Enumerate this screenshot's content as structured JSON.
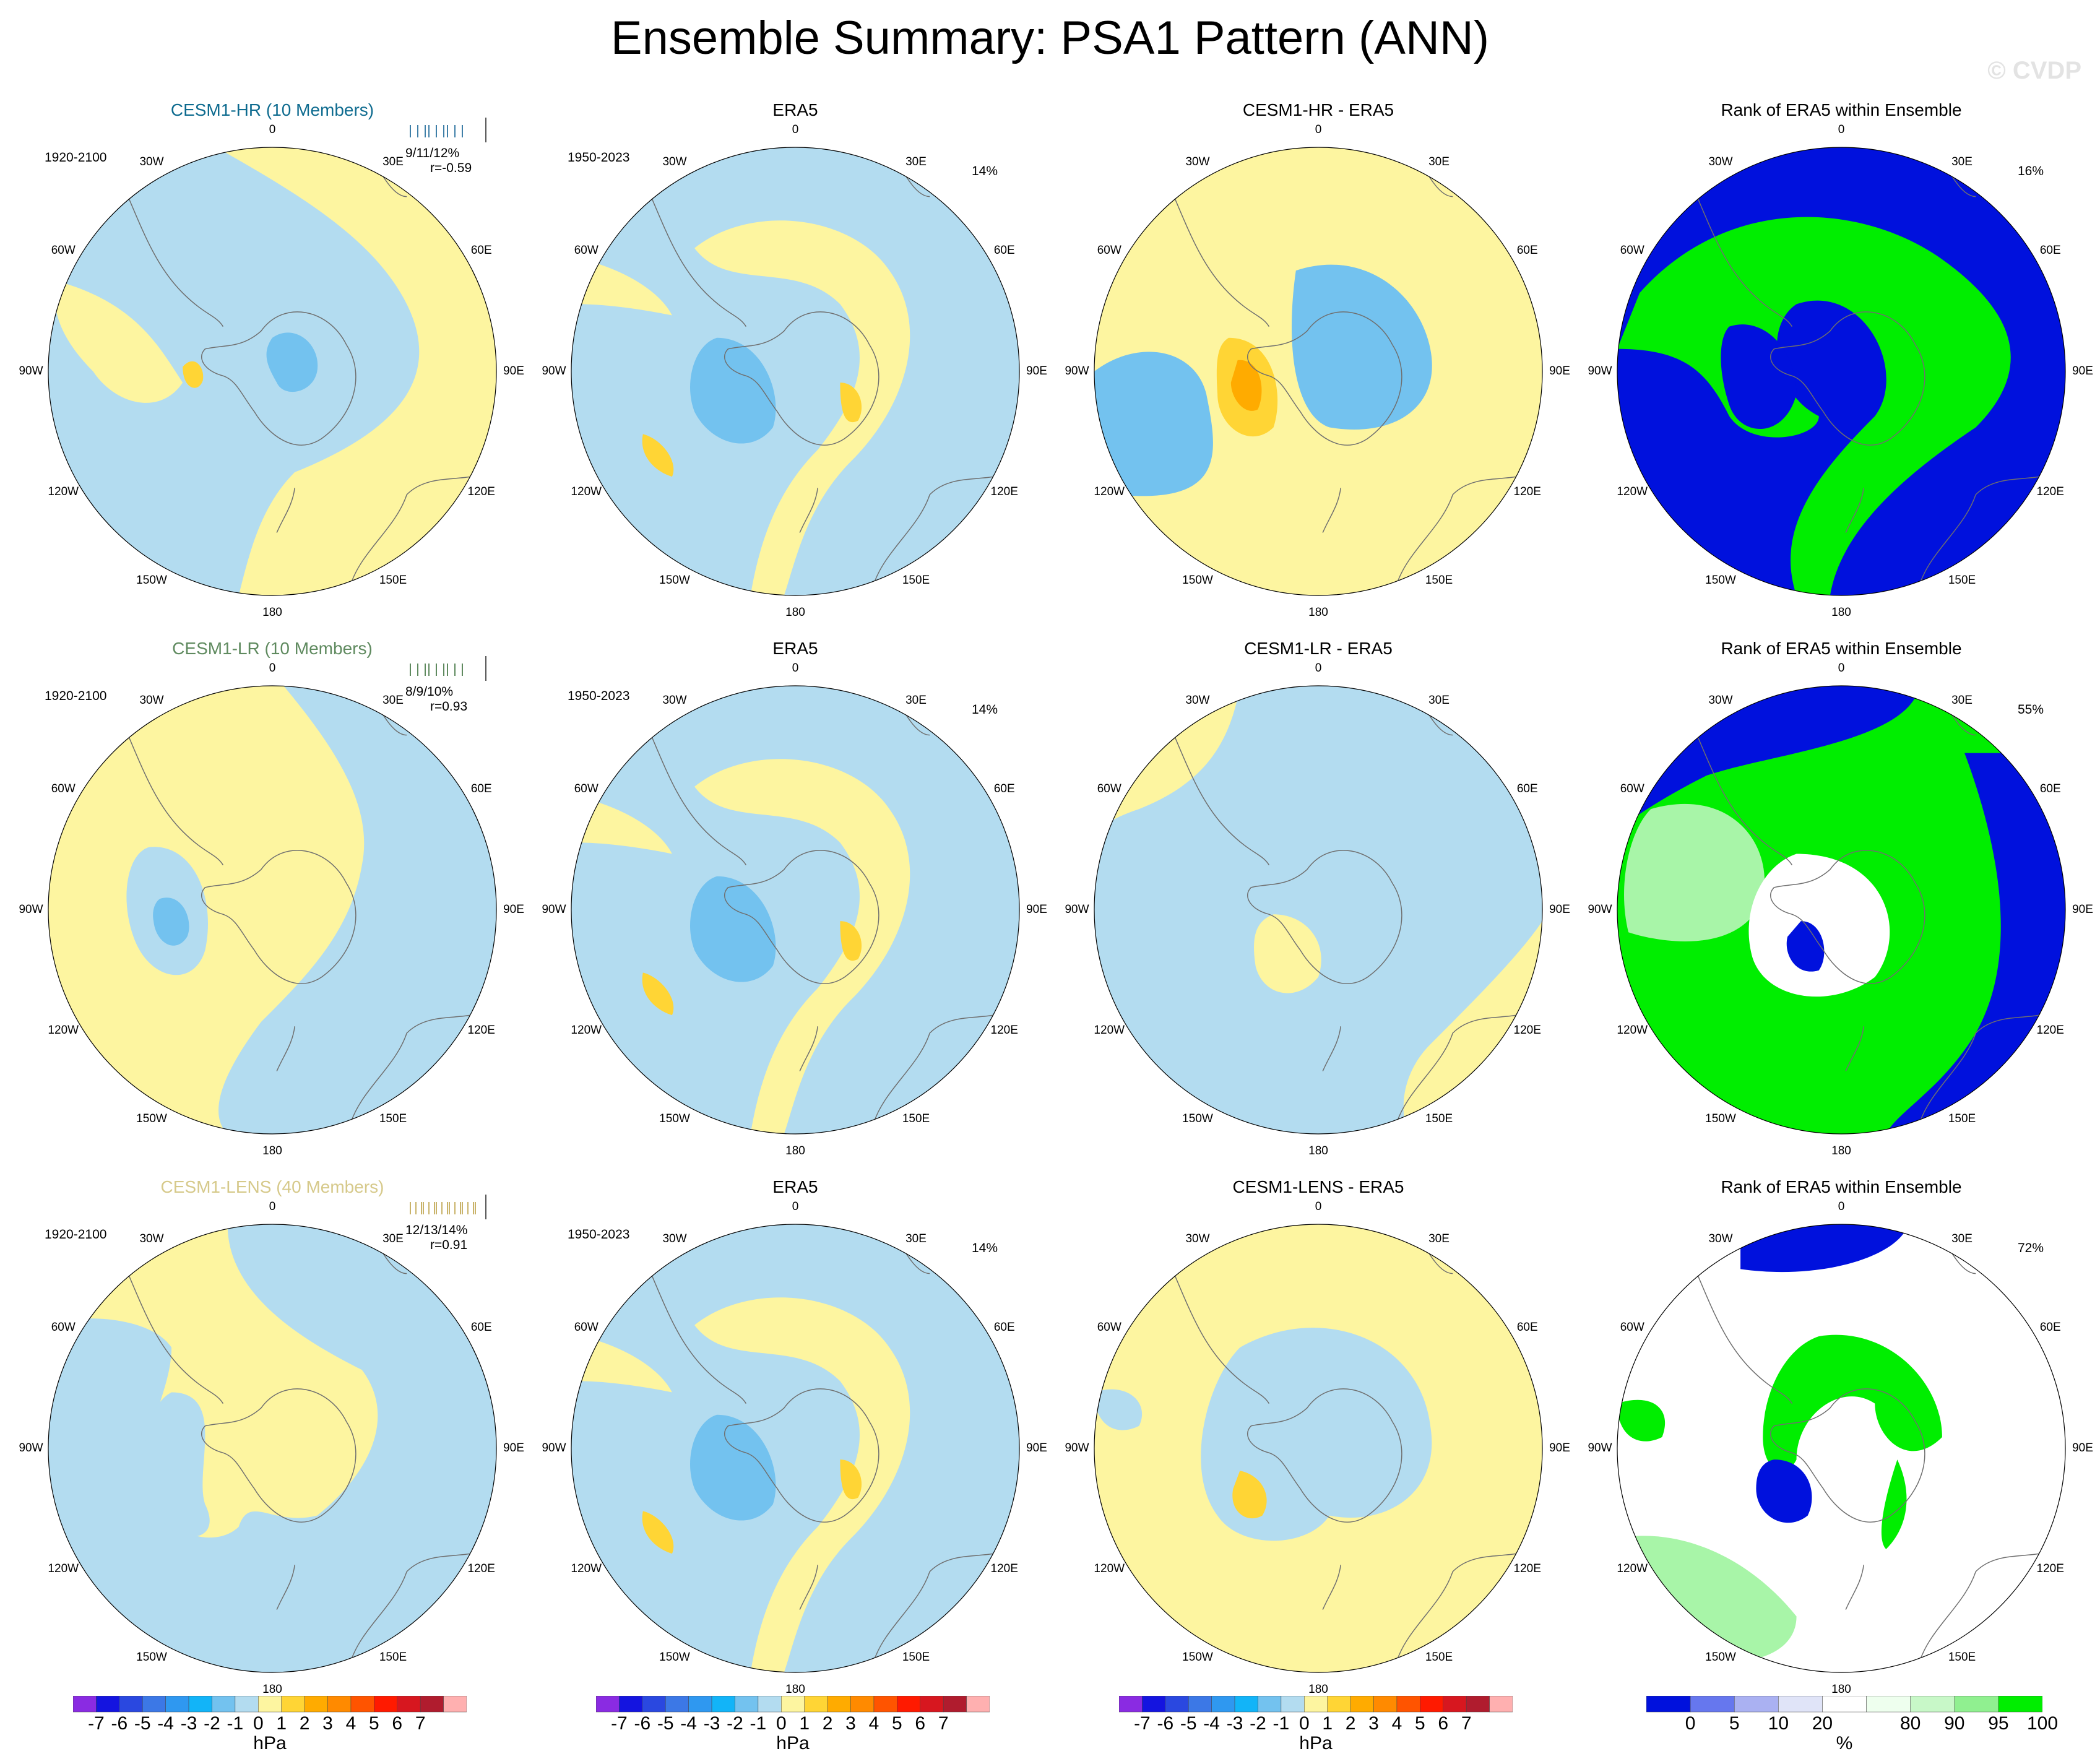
{
  "title": "Ensemble Summary: PSA1 Pattern (ANN)",
  "watermark": "© CVDP",
  "colors": {
    "ocean_pos": "#ffff99",
    "fill_neg1": "#b3dcf0",
    "fill_pos1": "#fdf5a0",
    "fill_neg2": "#73c2ef",
    "fill_neg3": "#1ea6ec",
    "fill_pos2": "#ffd535",
    "fill_pos3": "#ffab00",
    "rank_blue": "#0011dd",
    "rank_green": "#00ee00",
    "rank_lightgreen": "#a8f5a8",
    "rank_white": "#ffffff"
  },
  "longitude_labels": [
    "0",
    "30E",
    "60E",
    "90E",
    "120E",
    "150E",
    "180",
    "150W",
    "120W",
    "90W",
    "60W",
    "30W"
  ],
  "rows": [
    {
      "ensemble": {
        "title": "CESM1-HR (10 Members)",
        "title_color": "#0e6b8f",
        "period": "1920-2100",
        "stats": "9/11/12%",
        "corr": "r=-0.59",
        "strip_color": "#3f7fa8"
      },
      "era5": {
        "title": "ERA5",
        "period": "1950-2023",
        "pct": "14%"
      },
      "diff": {
        "title": "CESM1-HR - ERA5"
      },
      "rank": {
        "title": "Rank of ERA5 within Ensemble",
        "pct": "16%"
      }
    },
    {
      "ensemble": {
        "title": "CESM1-LR (10 Members)",
        "title_color": "#5f8a5f",
        "period": "1920-2100",
        "stats": "8/9/10%",
        "corr": "r=0.93",
        "strip_color": "#5f8a5f"
      },
      "era5": {
        "title": "ERA5",
        "period": "1950-2023",
        "pct": "14%"
      },
      "diff": {
        "title": "CESM1-LR - ERA5"
      },
      "rank": {
        "title": "Rank of ERA5 within Ensemble",
        "pct": "55%"
      }
    },
    {
      "ensemble": {
        "title": "CESM1-LENS (40 Members)",
        "title_color": "#d6c98a",
        "period": "1920-2100",
        "stats": "12/13/14%",
        "corr": "r=0.91",
        "strip_color": "#c9b36a"
      },
      "era5": {
        "title": "ERA5",
        "period": "1950-2023",
        "pct": "14%"
      },
      "diff": {
        "title": "CESM1-LENS - ERA5"
      },
      "rank": {
        "title": "Rank of ERA5 within Ensemble",
        "pct": "72%"
      }
    }
  ],
  "chart_data": [
    {
      "type": "heatmap",
      "description_kind": "polar stereographic maps of PSA1 pattern (Southern Hemisphere sea level pressure regression)",
      "colorbar_hpa": {
        "labels": [
          "-7",
          "-6",
          "-5",
          "-4",
          "-3",
          "-2",
          "-1",
          "0",
          "1",
          "2",
          "3",
          "4",
          "5",
          "6",
          "7"
        ],
        "colors": [
          "#8a2be2",
          "#1414e0",
          "#2a48e0",
          "#3c78e6",
          "#2f98f0",
          "#12b4f8",
          "#73c2ef",
          "#b3dcf0",
          "#fdf5a0",
          "#ffd535",
          "#ffab00",
          "#ff8a00",
          "#ff5400",
          "#ff1a00",
          "#d7171f",
          "#b01c2e",
          "#ffb0b0"
        ],
        "unit": "hPa"
      },
      "colorbar_rank": {
        "labels": [
          "0",
          "5",
          "10",
          "20",
          "80",
          "90",
          "95",
          "100"
        ],
        "label_positions": [
          0,
          1,
          2,
          3,
          5,
          6,
          7,
          8
        ],
        "colors": [
          "#0011dd",
          "#6677ee",
          "#aab1f2",
          "#e0e4f8",
          "#ffffff",
          "#eeffee",
          "#c8f8c8",
          "#90f090",
          "#00ee00"
        ],
        "unit": "%"
      }
    }
  ]
}
